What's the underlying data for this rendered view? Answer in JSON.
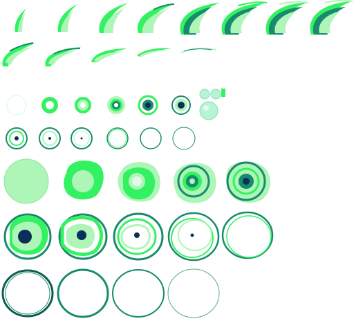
{
  "sprite_sheet": {
    "name": "",
    "background": "#ffffff",
    "palette": {
      "light_green": "#aef5b8",
      "bright_green": "#33f262",
      "mid_green": "#22cc66",
      "teal": "#178b6c",
      "dark_teal": "#0e5c4e",
      "navy": "#0b2f58",
      "bubble": "#b8f3d8"
    },
    "groups": [
      {
        "name": "slash-arc-frames",
        "frame_count": 13,
        "frame_sizes": [
          "small",
          "medium",
          "large"
        ]
      },
      {
        "name": "small-ring-frames",
        "frame_count": 12
      },
      {
        "name": "bubble-particle",
        "frame_count": 1
      },
      {
        "name": "large-ring-frames",
        "frame_count": 14
      }
    ]
  }
}
